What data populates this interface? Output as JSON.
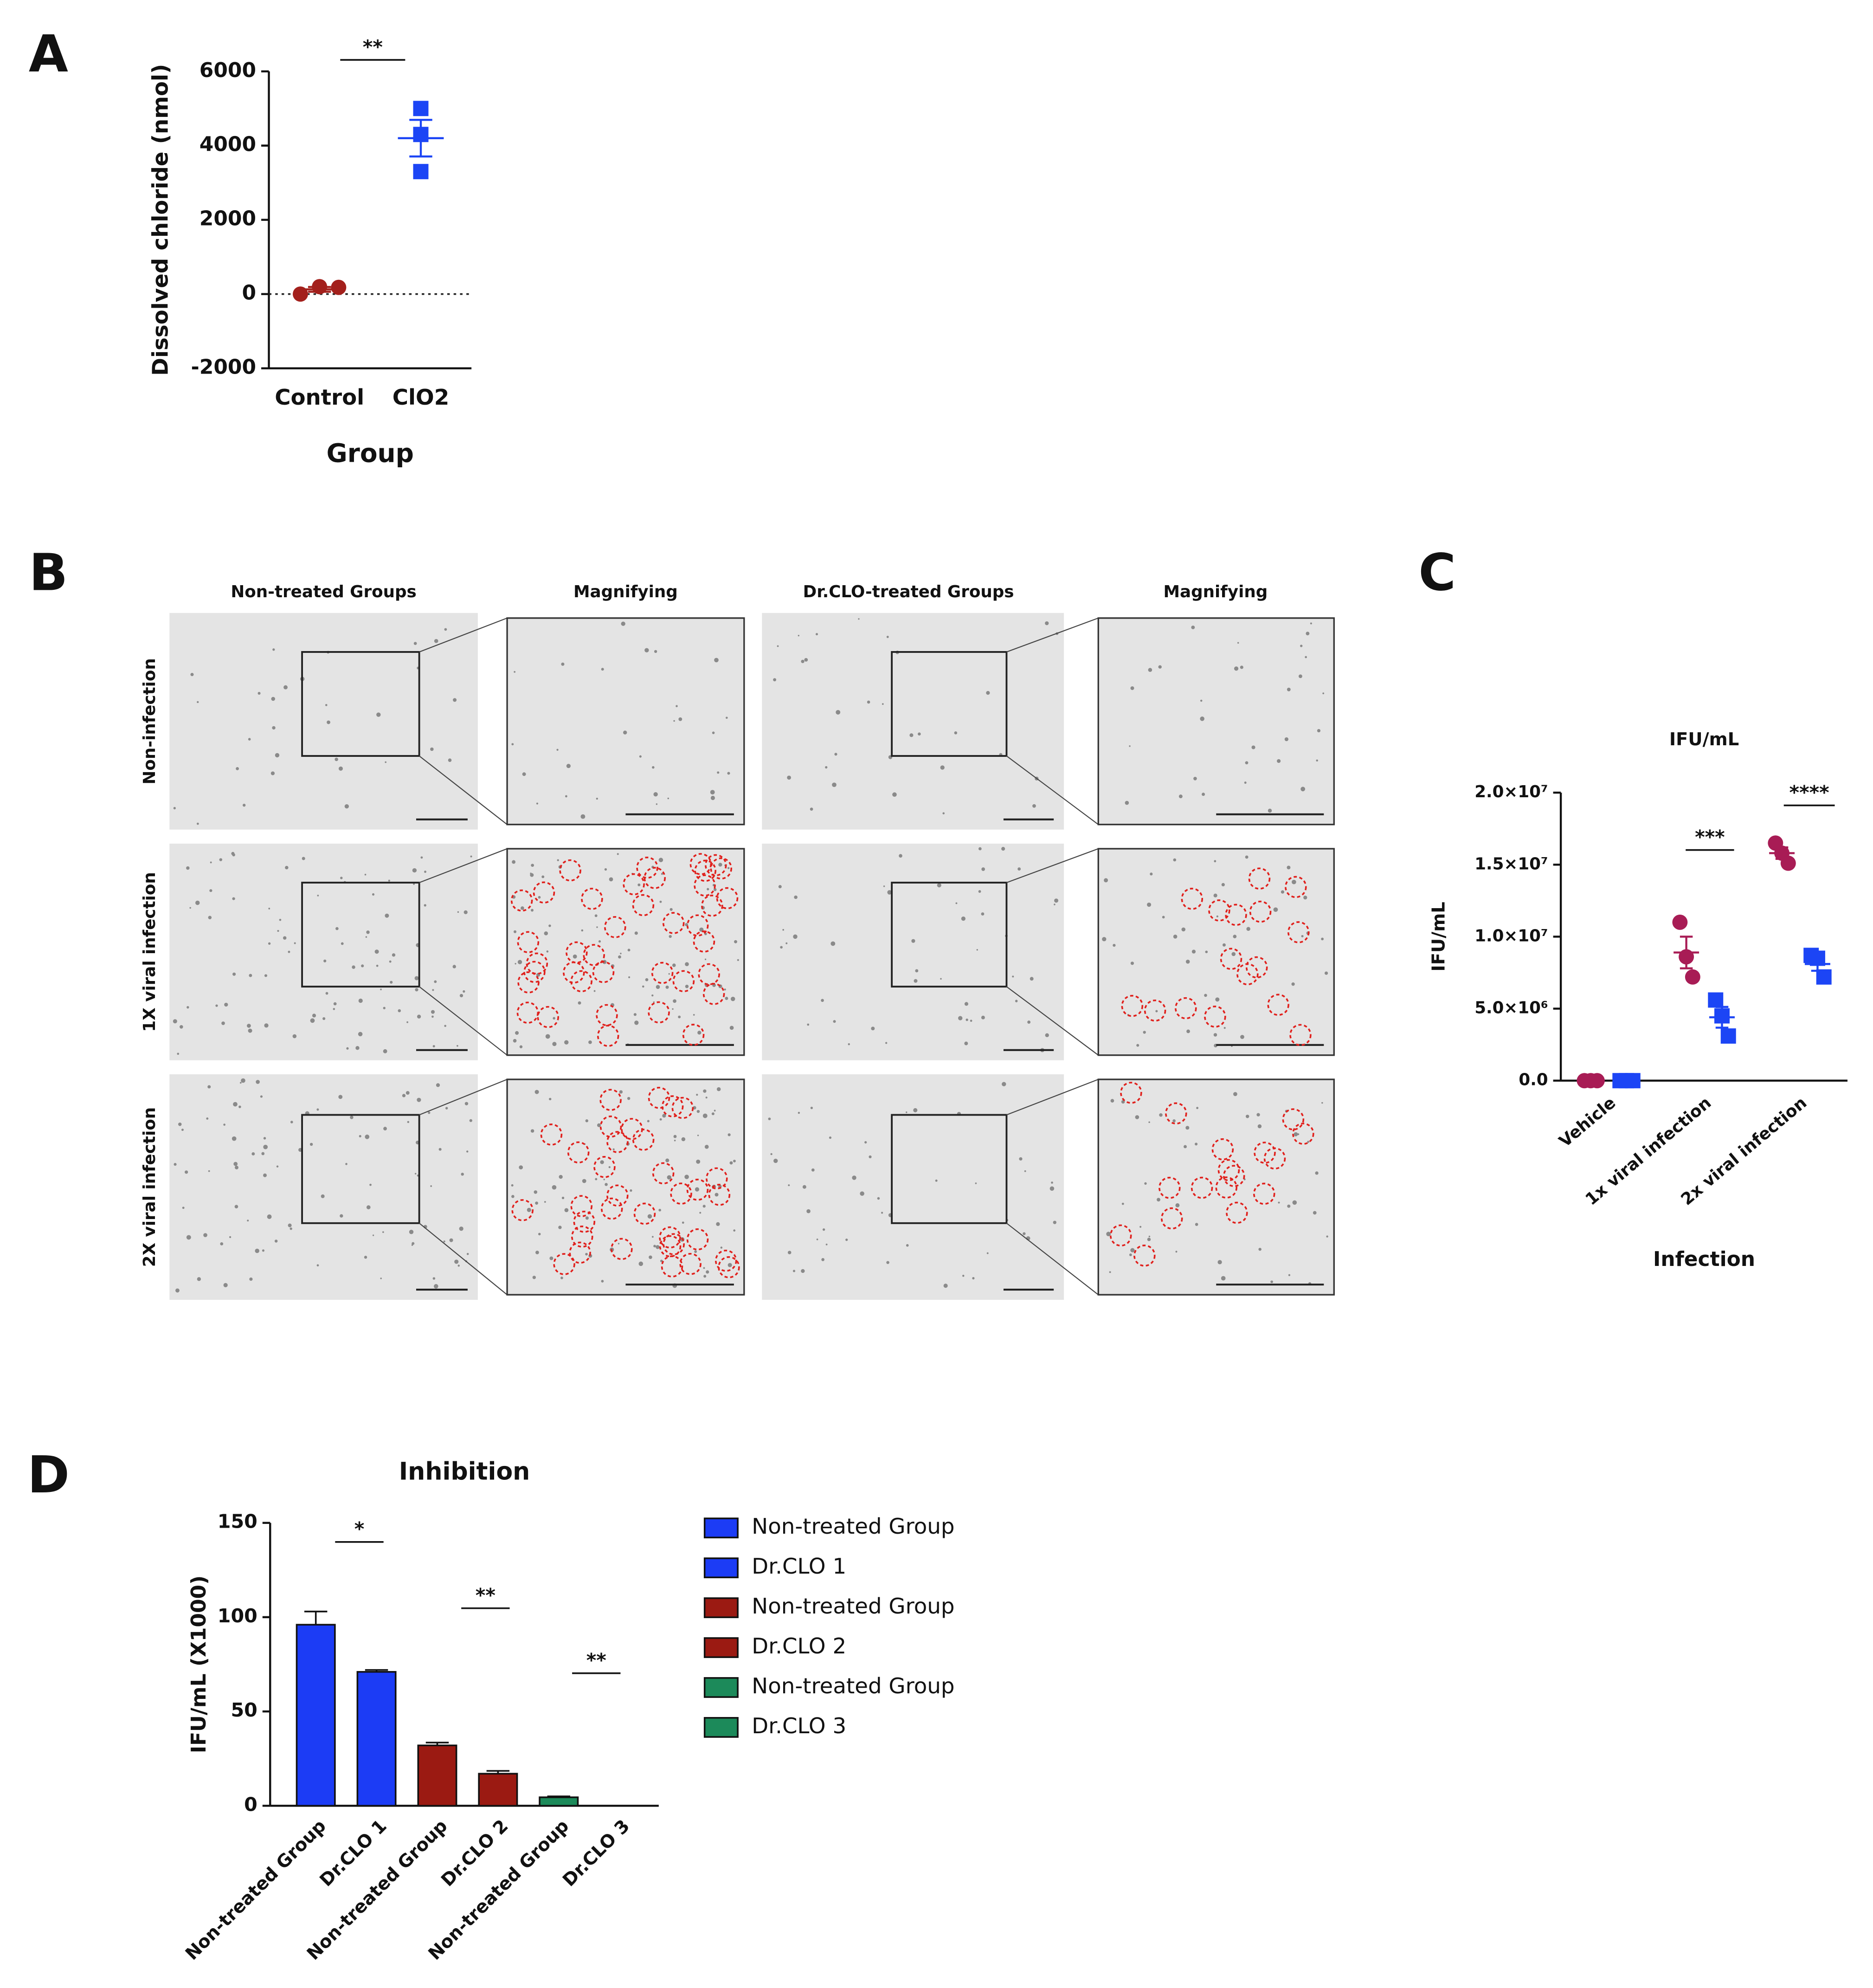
{
  "panel_labels": [
    "A",
    "B",
    "C",
    "D"
  ],
  "microscopy": {
    "column_headers": [
      "Non-treated Groups",
      "Magnifying",
      "Dr.CLO-treated Groups",
      "Magnifying"
    ],
    "row_labels": [
      "Non-infection",
      "1X viral infection",
      "2X viral infection"
    ]
  },
  "chart_data": [
    {
      "type": "dot",
      "ylabel": "Dissolved chloride (nmol)",
      "xlabel": "Group",
      "categories": [
        "Control",
        "ClO2"
      ],
      "points": [
        [
          0,
          200,
          180
        ],
        [
          5000,
          4300,
          3300
        ]
      ],
      "mean": [
        127,
        4200
      ],
      "sem": [
        64,
        493
      ],
      "colors": [
        "#a3201c",
        "#1c45f5"
      ],
      "markers": [
        "circle",
        "square"
      ],
      "hline": 0,
      "ylim": [
        -2000,
        6000
      ],
      "yticks": [
        -2000,
        0,
        2000,
        4000,
        6000
      ],
      "annotations": [
        "**"
      ]
    },
    {
      "type": "grouped_dot",
      "title": "IFU/mL",
      "ylabel": "IFU/mL",
      "xlabel": "Infection",
      "categories": [
        "Vehicle",
        "1x viral infection",
        "2x viral infection"
      ],
      "series": [
        {
          "color": "#a81c55",
          "marker": "circle",
          "values": [
            [
              0,
              0,
              0
            ],
            [
              11000000,
              8600000,
              7200000
            ],
            [
              16500000,
              15800000,
              15100000
            ]
          ],
          "mean": [
            0,
            8900000,
            15800000
          ],
          "sem": [
            0,
            1100000,
            400000
          ]
        },
        {
          "color": "#1c45f5",
          "marker": "square",
          "values": [
            [
              0,
              0,
              0
            ],
            [
              5600000,
              4500000,
              3100000
            ],
            [
              8700000,
              8500000,
              7200000
            ]
          ],
          "mean": [
            0,
            4400000,
            8100000
          ],
          "sem": [
            0,
            720000,
            470000
          ]
        }
      ],
      "ylim": [
        0,
        20000000
      ],
      "yticks": [
        {
          "value": 0,
          "label": "0.0"
        },
        {
          "value": 5000000,
          "label": "5.0×10⁶"
        },
        {
          "value": 10000000,
          "label": "1.0×10⁷"
        },
        {
          "value": 15000000,
          "label": "1.5×10⁷"
        },
        {
          "value": 20000000,
          "label": "2.0×10⁷"
        }
      ],
      "annotations": [
        "***",
        "****"
      ]
    },
    {
      "type": "bar",
      "title": "Inhibition",
      "ylabel": "IFU/mL (X1000)",
      "categories": [
        "Non-treated Group",
        "Dr.CLO 1",
        "Non-treated Group",
        "Dr.CLO 2",
        "Non-treated Group",
        "Dr.CLO 3"
      ],
      "series": [
        {
          "name": "Non-treated Group",
          "color": "#1c3cf5",
          "values": [
            96,
            null,
            null,
            null,
            null,
            null
          ],
          "errors": [
            7,
            null,
            null,
            null,
            null,
            null
          ]
        },
        {
          "name": "Dr.CLO 1",
          "color": "#1c3cf5",
          "values": [
            null,
            71,
            null,
            null,
            null,
            null
          ],
          "errors": [
            null,
            1,
            null,
            null,
            null,
            null
          ]
        },
        {
          "name": "Non-treated Group",
          "color": "#9b1a12",
          "values": [
            null,
            null,
            32,
            null,
            null,
            null
          ],
          "errors": [
            null,
            null,
            1.5,
            null,
            null,
            null
          ]
        },
        {
          "name": "Dr.CLO 2",
          "color": "#9b1a12",
          "values": [
            null,
            null,
            null,
            17,
            null,
            null
          ],
          "errors": [
            null,
            null,
            null,
            1.5,
            null,
            null
          ]
        },
        {
          "name": "Non-treated Group",
          "color": "#1c8a5a",
          "values": [
            null,
            null,
            null,
            null,
            4.5,
            null
          ],
          "errors": [
            null,
            null,
            null,
            null,
            0.5,
            null
          ]
        },
        {
          "name": "Dr.CLO 3",
          "color": "#1c8a5a",
          "values": [
            null,
            null,
            null,
            null,
            null,
            0
          ],
          "errors": [
            null,
            null,
            null,
            null,
            null,
            0
          ]
        }
      ],
      "ylim": [
        0,
        150
      ],
      "yticks": [
        0,
        50,
        100,
        150
      ],
      "annotations": [
        "*",
        "**",
        "**"
      ]
    }
  ]
}
